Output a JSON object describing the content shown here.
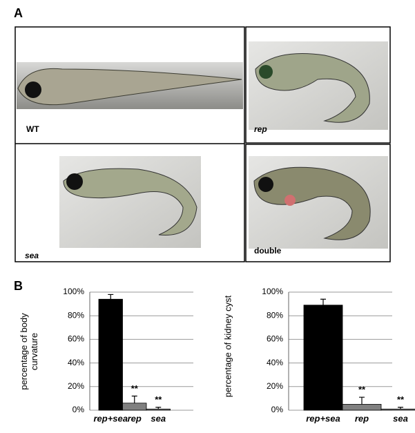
{
  "panel_a": {
    "label": "A",
    "images": [
      {
        "label": "WT"
      },
      {
        "label": "rep"
      },
      {
        "label": "sea"
      },
      {
        "label": "double"
      }
    ]
  },
  "panel_b": {
    "label": "B"
  },
  "chart_data": [
    {
      "type": "bar",
      "y_label": "percentage of body curvature",
      "categories": [
        "rep+sea",
        "rep",
        "sea"
      ],
      "values": [
        94,
        6,
        1
      ],
      "errors": [
        4,
        6,
        1.5
      ],
      "colors": [
        "#000000",
        "#808080",
        "#808080"
      ],
      "annotations": [
        null,
        "**",
        "**"
      ],
      "ylim": [
        0,
        100
      ],
      "yticks": [
        {
          "value": 0,
          "label": "0%"
        },
        {
          "value": 20,
          "label": "20%"
        },
        {
          "value": 40,
          "label": "40%"
        },
        {
          "value": 60,
          "label": "60%"
        },
        {
          "value": 80,
          "label": "80%"
        },
        {
          "value": 100,
          "label": "100%"
        }
      ],
      "grid": true
    },
    {
      "type": "bar",
      "y_label": "percentage of kidney cyst",
      "categories": [
        "rep+sea",
        "rep",
        "sea"
      ],
      "values": [
        89,
        5,
        1
      ],
      "errors": [
        5,
        6,
        1.5
      ],
      "colors": [
        "#000000",
        "#808080",
        "#808080"
      ],
      "annotations": [
        null,
        "**",
        "**"
      ],
      "ylim": [
        0,
        100
      ],
      "yticks": [
        {
          "value": 0,
          "label": "0%"
        },
        {
          "value": 20,
          "label": "20%"
        },
        {
          "value": 40,
          "label": "40%"
        },
        {
          "value": 60,
          "label": "60%"
        },
        {
          "value": 80,
          "label": "80%"
        },
        {
          "value": 100,
          "label": "100%"
        }
      ],
      "grid": true
    }
  ]
}
